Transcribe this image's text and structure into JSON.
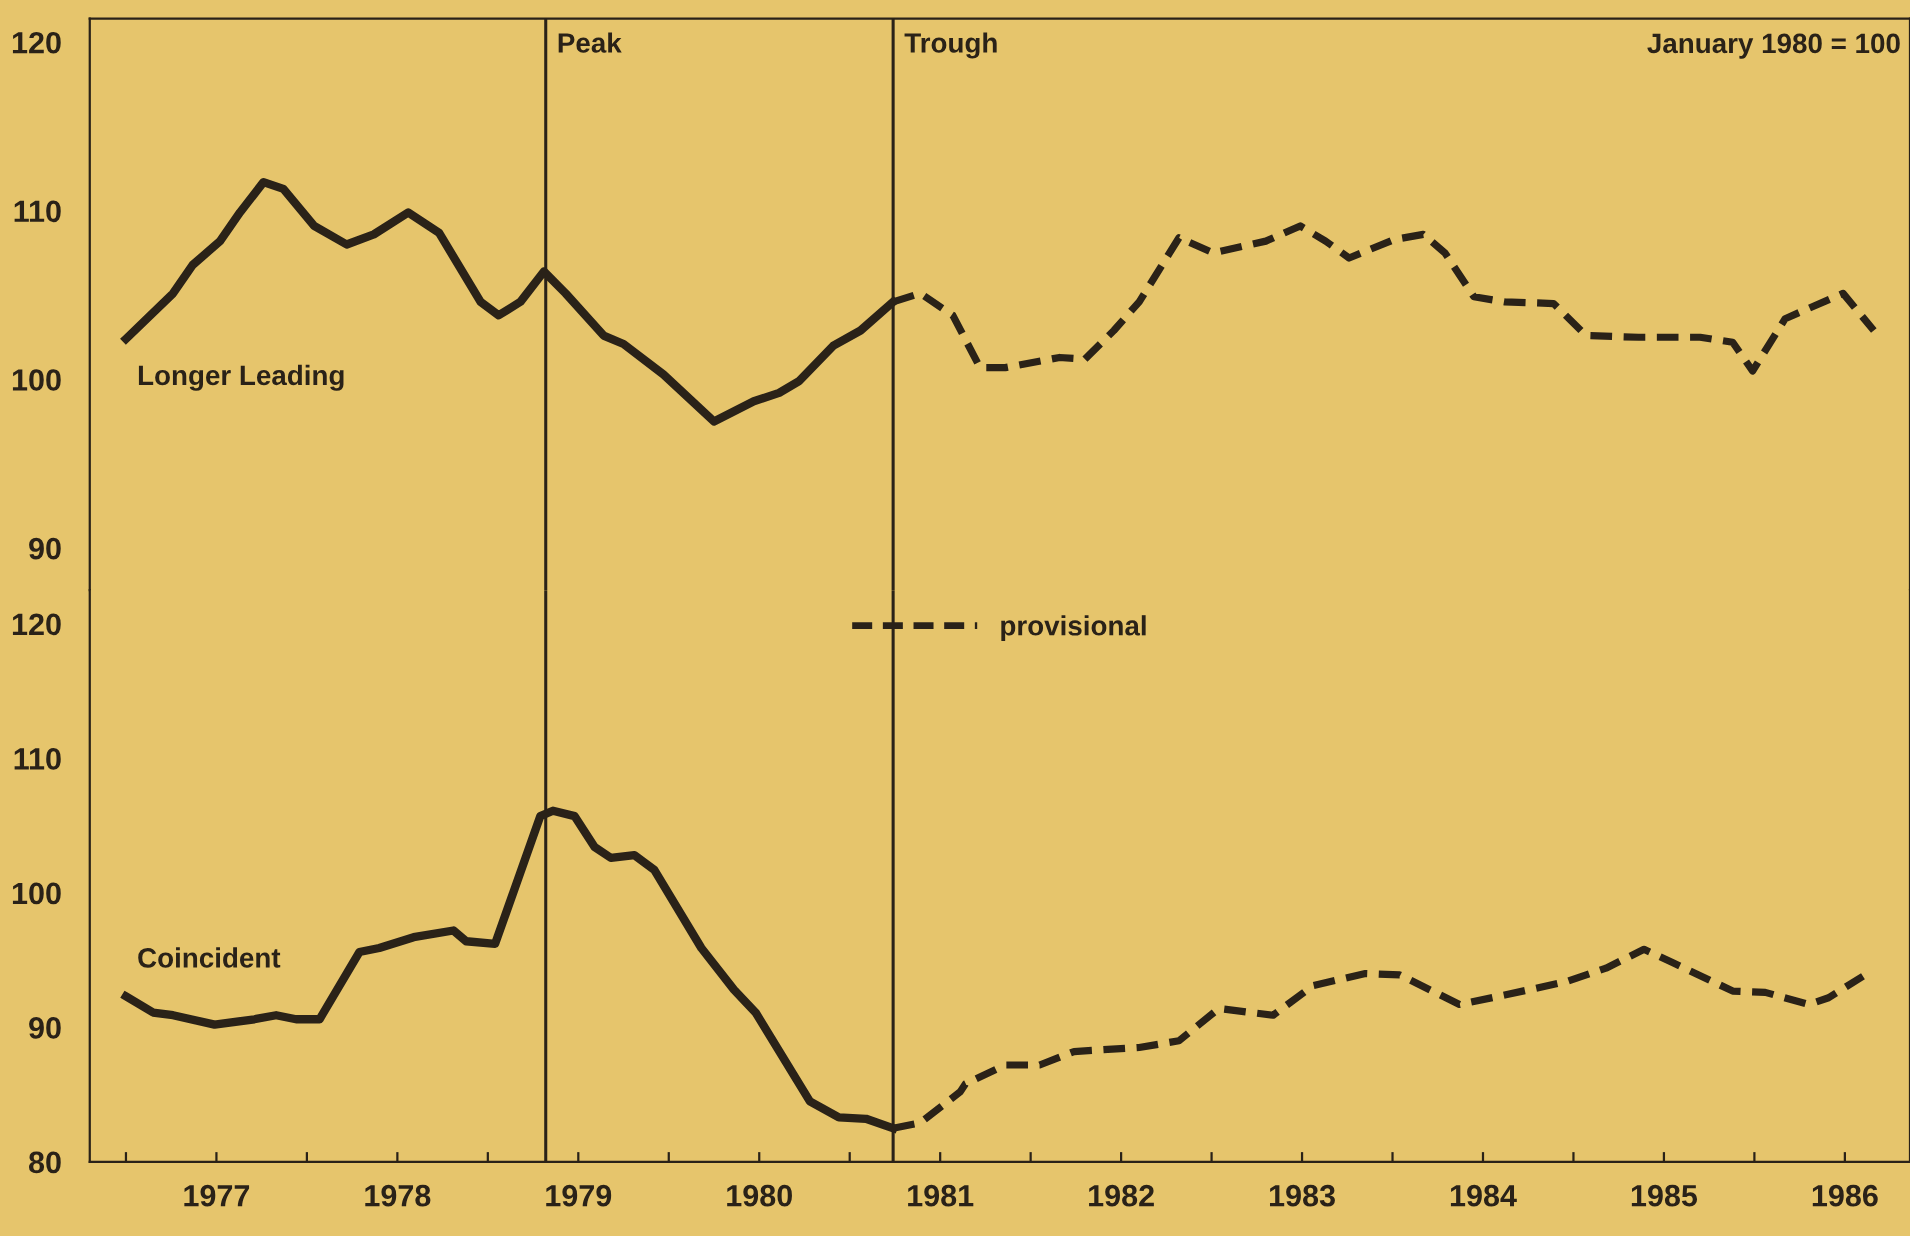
{
  "chart_data": [
    {
      "type": "line",
      "annotations": [
        "January 1980 = 100"
      ],
      "xlim": [
        1976.8,
        1986.86
      ],
      "ylim": [
        87.5,
        121.4
      ],
      "yticks": [
        90,
        100,
        110,
        120
      ],
      "tick_labels": "y",
      "grid": false,
      "legend": false,
      "ref_lines": [
        {
          "axis": "x",
          "value": 1979.32,
          "label": "Peak",
          "color": "#2a2218"
        },
        {
          "axis": "x",
          "value": 1981.24,
          "label": "Trough",
          "color": "#2a2218"
        }
      ],
      "series": [
        {
          "name": "Longer Leading",
          "color": "#2a2218",
          "line_style": "solid",
          "x": [
            1977.0,
            1977.26,
            1977.37,
            1977.52,
            1977.63,
            1977.76,
            1977.87,
            1978.04,
            1978.22,
            1978.37,
            1978.56,
            1978.73,
            1978.96,
            1979.06,
            1979.18,
            1979.31,
            1979.43,
            1979.64,
            1979.75,
            1979.97,
            1980.25,
            1980.47,
            1980.61,
            1980.72,
            1980.91,
            1981.06,
            1981.24
          ],
          "values": [
            102.4,
            105.1,
            106.8,
            108.2,
            109.9,
            111.7,
            111.3,
            109.1,
            108.0,
            108.6,
            109.9,
            108.7,
            104.6,
            103.8,
            104.6,
            106.4,
            105.1,
            102.6,
            102.1,
            100.3,
            97.5,
            98.7,
            99.2,
            99.9,
            102.0,
            102.9,
            104.6
          ]
        },
        {
          "color": "#2a2218",
          "line_style": "dashed",
          "x": [
            1981.24,
            1981.39,
            1981.57,
            1981.72,
            1981.86,
            1982.16,
            1982.3,
            1982.46,
            1982.6,
            1982.82,
            1983.01,
            1983.3,
            1983.49,
            1983.63,
            1983.76,
            1984.01,
            1984.17,
            1984.29,
            1984.45,
            1984.62,
            1984.89,
            1985.07,
            1985.36,
            1985.7,
            1985.88,
            1985.99,
            1986.17,
            1986.49,
            1986.66
          ],
          "values": [
            104.6,
            105.1,
            103.8,
            100.7,
            100.7,
            101.3,
            101.2,
            102.9,
            104.6,
            108.4,
            107.5,
            108.2,
            109.1,
            108.2,
            107.2,
            108.3,
            108.6,
            107.5,
            104.9,
            104.6,
            104.5,
            102.6,
            102.5,
            102.5,
            102.2,
            100.5,
            103.6,
            105.1,
            102.9
          ]
        }
      ]
    },
    {
      "type": "line",
      "xlim": [
        1976.8,
        1986.86
      ],
      "ylim": [
        80,
        122.5
      ],
      "yticks": [
        80,
        90,
        100,
        110,
        120
      ],
      "grid": false,
      "legend": "top",
      "xticks": [
        {
          "value": 1977,
          "label": null
        },
        {
          "value": 1977.5,
          "label": "1977"
        },
        {
          "value": 1978,
          "label": null
        },
        {
          "value": 1978.5,
          "label": "1978"
        },
        {
          "value": 1979,
          "label": null
        },
        {
          "value": 1979.5,
          "label": "1979"
        },
        {
          "value": 1980,
          "label": null
        },
        {
          "value": 1980.5,
          "label": "1980"
        },
        {
          "value": 1981,
          "label": null
        },
        {
          "value": 1981.5,
          "label": "1981"
        },
        {
          "value": 1982,
          "label": null
        },
        {
          "value": 1982.5,
          "label": "1982"
        },
        {
          "value": 1983,
          "label": null
        },
        {
          "value": 1983.5,
          "label": "1983"
        },
        {
          "value": 1984,
          "label": null
        },
        {
          "value": 1984.5,
          "label": "1984"
        },
        {
          "value": 1985,
          "label": null
        },
        {
          "value": 1985.5,
          "label": "1985"
        },
        {
          "value": 1986,
          "label": null
        },
        {
          "value": 1986.5,
          "label": "1986"
        }
      ],
      "ref_lines": [
        {
          "axis": "x",
          "value": 1979.32,
          "color": "#2a2218"
        },
        {
          "axis": "x",
          "value": 1981.24,
          "color": "#2a2218"
        }
      ],
      "series": [
        {
          "name": "Coincident",
          "color": "#2a2218",
          "line_style": "solid",
          "x": [
            1977.0,
            1977.15,
            1977.26,
            1977.49,
            1977.71,
            1977.83,
            1977.94,
            1978.07,
            1978.29,
            1978.4,
            1978.59,
            1978.81,
            1978.88,
            1979.04,
            1979.29,
            1979.36,
            1979.48,
            1979.59,
            1979.68,
            1979.81,
            1979.92,
            1980.18,
            1980.36,
            1980.48,
            1980.78,
            1980.94,
            1981.09,
            1981.24
          ],
          "values": [
            92.3,
            91.1,
            90.9,
            90.2,
            90.6,
            90.9,
            90.6,
            90.6,
            95.6,
            95.9,
            96.7,
            97.2,
            96.4,
            96.2,
            105.7,
            106.1,
            105.7,
            103.4,
            102.6,
            102.8,
            101.7,
            95.9,
            92.8,
            91.1,
            84.5,
            83.3,
            83.2,
            82.5
          ]
        },
        {
          "name": "provisional",
          "color": "#2a2218",
          "line_style": "dashed",
          "x": [
            1981.24,
            1981.39,
            1981.61,
            1981.64,
            1981.86,
            1982.05,
            1982.24,
            1982.6,
            1982.82,
            1983.04,
            1983.34,
            1983.56,
            1983.85,
            1984.04,
            1984.37,
            1984.62,
            1984.96,
            1985.18,
            1985.39,
            1985.55,
            1985.88,
            1986.06,
            1986.3,
            1986.41,
            1986.6
          ],
          "values": [
            82.5,
            82.9,
            85.2,
            85.8,
            87.2,
            87.2,
            88.2,
            88.5,
            89.0,
            91.4,
            90.9,
            93.1,
            94.0,
            93.9,
            91.7,
            92.4,
            93.4,
            94.4,
            95.8,
            94.8,
            92.7,
            92.6,
            91.7,
            92.2,
            93.8
          ]
        }
      ]
    }
  ]
}
